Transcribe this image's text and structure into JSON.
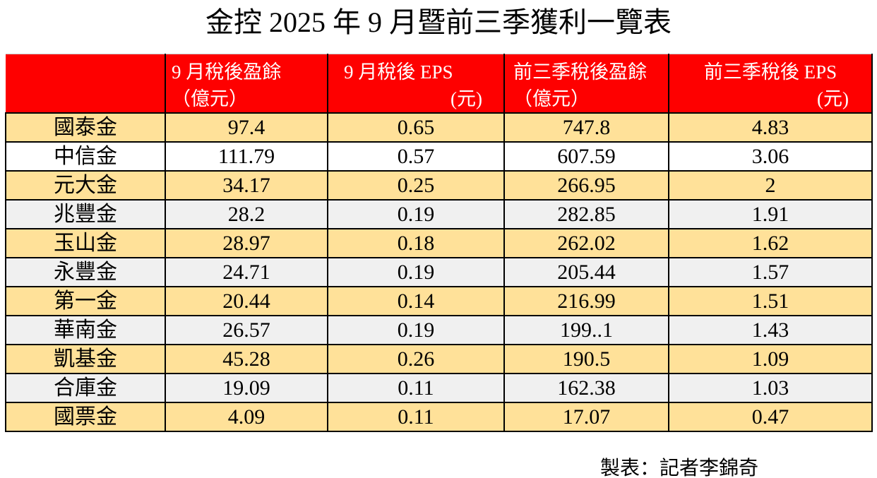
{
  "title": "金控 2025 年 9 月暨前三季獲利一覽表",
  "credit": "製表：記者李錦奇",
  "colors": {
    "header_bg": "#fe0000",
    "header_text": "#ffffff",
    "row_gold": "#ffe199",
    "row_gray": "#f0f0f0",
    "row_white": "#ffffff",
    "grid_border": "#000000",
    "header_top_border": "#c8c8c8"
  },
  "header": [
    {
      "line1": "",
      "line2": ""
    },
    {
      "line1": "9 月稅後盈餘",
      "line2": "（億元）"
    },
    {
      "line1": "9 月稅後 EPS",
      "line2": "(元)"
    },
    {
      "line1": "前三季稅後盈餘",
      "line2": "（億元）"
    },
    {
      "line1": "前三季稅後 EPS",
      "line2": "(元)"
    }
  ],
  "chart_data": {
    "type": "table",
    "title": "金控 2025 年 9 月暨前三季獲利一覽表",
    "columns": [
      "",
      "9 月稅後盈餘（億元）",
      "9 月稅後 EPS(元)",
      "前三季稅後盈餘（億元）",
      "前三季稅後 EPS(元)"
    ],
    "rows": [
      {
        "name": "國泰金",
        "values": [
          "97.4",
          "0.65",
          "747.8",
          "4.83"
        ],
        "bg": "gold"
      },
      {
        "name": "中信金",
        "values": [
          "111.79",
          "0.57",
          "607.59",
          "3.06"
        ],
        "bg": "white"
      },
      {
        "name": "元大金",
        "values": [
          "34.17",
          "0.25",
          "266.95",
          "2"
        ],
        "bg": "gold"
      },
      {
        "name": "兆豐金",
        "values": [
          "28.2",
          "0.19",
          "282.85",
          "1.91"
        ],
        "bg": "gray"
      },
      {
        "name": "玉山金",
        "values": [
          "28.97",
          "0.18",
          "262.02",
          "1.62"
        ],
        "bg": "gold"
      },
      {
        "name": "永豐金",
        "values": [
          "24.71",
          "0.19",
          "205.44",
          "1.57"
        ],
        "bg": "gray"
      },
      {
        "name": "第一金",
        "values": [
          "20.44",
          "0.14",
          "216.99",
          "1.51"
        ],
        "bg": "gold"
      },
      {
        "name": "華南金",
        "values": [
          "26.57",
          "0.19",
          "199..1",
          "1.43"
        ],
        "bg": "gray"
      },
      {
        "name": "凱基金",
        "values": [
          "45.28",
          "0.26",
          "190.5",
          "1.09"
        ],
        "bg": "gold"
      },
      {
        "name": "合庫金",
        "values": [
          "19.09",
          "0.11",
          "162.38",
          "1.03"
        ],
        "bg": "gray"
      },
      {
        "name": "國票金",
        "values": [
          "4.09",
          "0.11",
          "17.07",
          "0.47"
        ],
        "bg": "gold"
      }
    ]
  }
}
